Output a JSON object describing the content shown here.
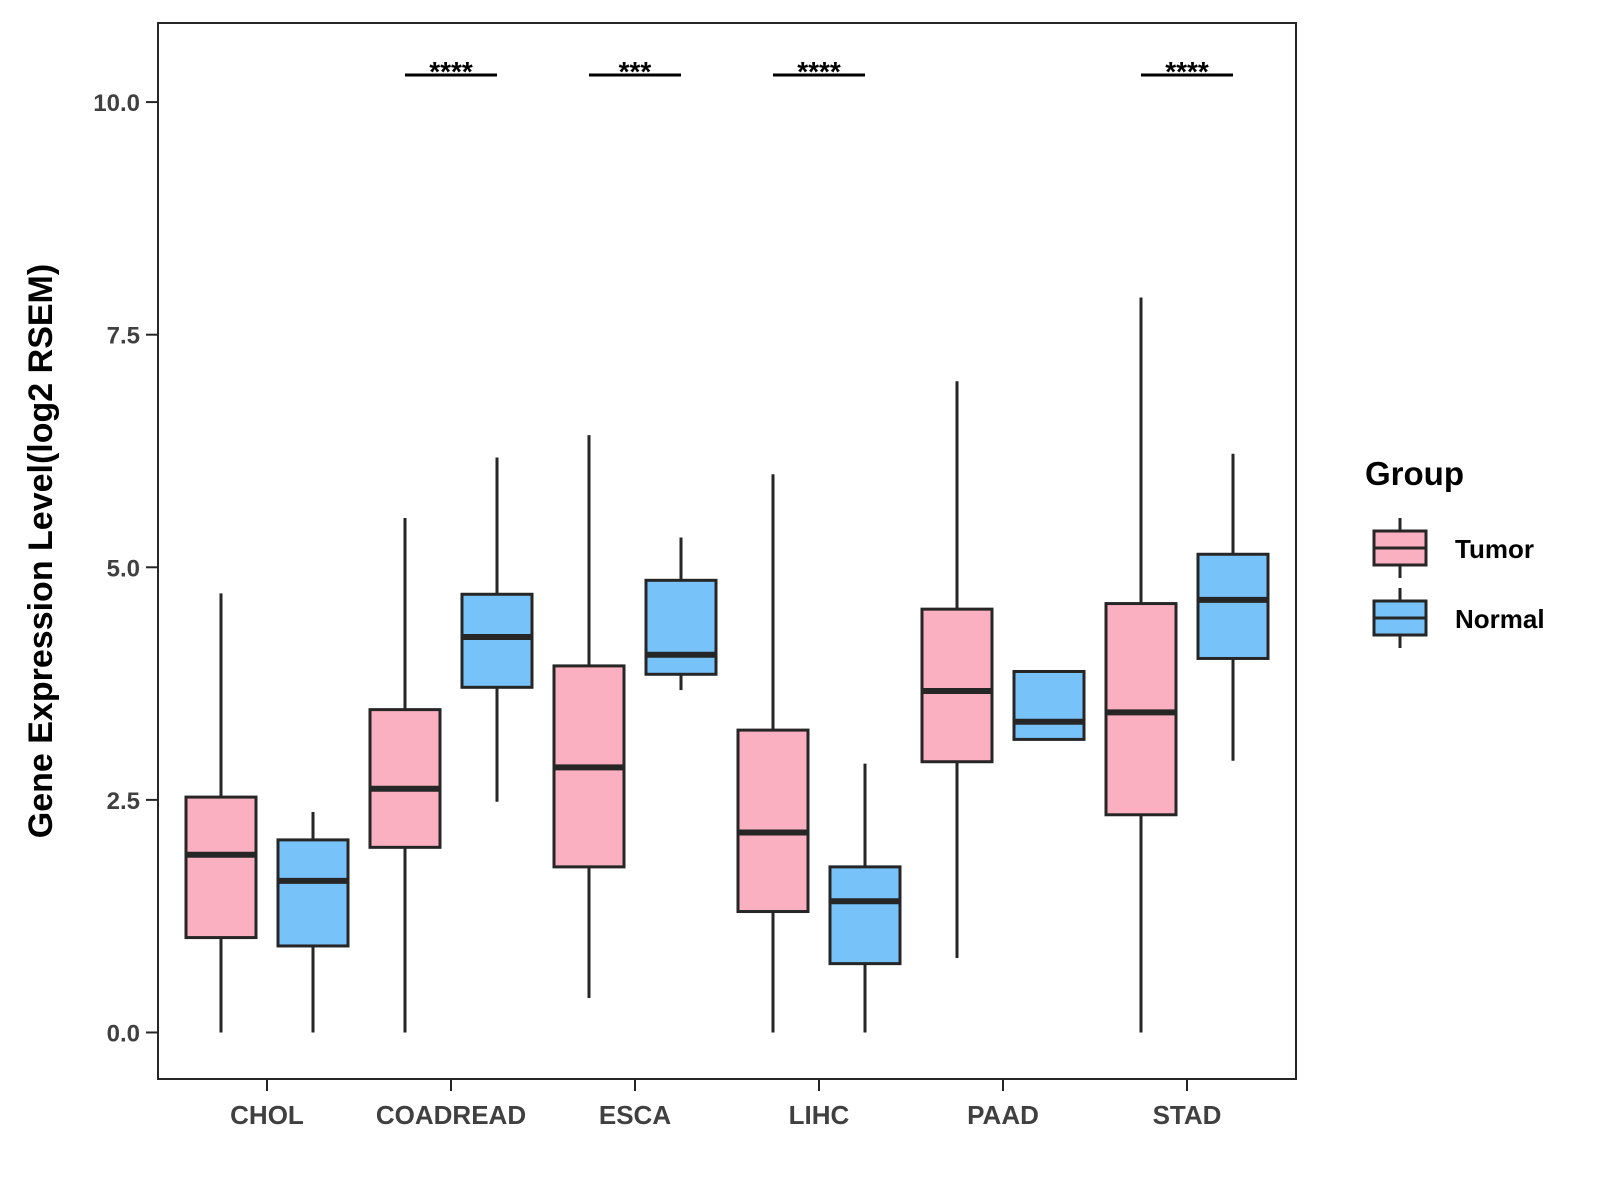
{
  "chart_data": {
    "type": "boxplot",
    "title": "",
    "xlabel": "",
    "ylabel": "Gene Expression Level(log2 RSEM)",
    "ylim": [
      -0.5,
      10.85
    ],
    "yticks": [
      0.0,
      2.5,
      5.0,
      7.5,
      10.0
    ],
    "ytick_labels": [
      "0.0",
      "2.5",
      "5.0",
      "7.5",
      "10.0"
    ],
    "categories": [
      "CHOL",
      "COADREAD",
      "ESCA",
      "LIHC",
      "PAAD",
      "STAD"
    ],
    "legend": {
      "title": "Group",
      "position": "right"
    },
    "colors": {
      "Tumor": "#fbb0c1",
      "Normal": "#78c2fa",
      "outline": "#262626"
    },
    "series": [
      {
        "name": "Tumor",
        "boxes": [
          {
            "min": 0.0,
            "q1": 1.02,
            "median": 1.91,
            "q3": 2.53,
            "max": 4.72
          },
          {
            "min": 0.0,
            "q1": 1.99,
            "median": 2.62,
            "q3": 3.47,
            "max": 5.53
          },
          {
            "min": 0.37,
            "q1": 1.78,
            "median": 2.85,
            "q3": 3.94,
            "max": 6.42
          },
          {
            "min": 0.0,
            "q1": 1.3,
            "median": 2.15,
            "q3": 3.25,
            "max": 6.0
          },
          {
            "min": 0.8,
            "q1": 2.91,
            "median": 3.67,
            "q3": 4.55,
            "max": 7.0
          },
          {
            "min": 0.0,
            "q1": 2.34,
            "median": 3.44,
            "q3": 4.61,
            "max": 7.9
          }
        ]
      },
      {
        "name": "Normal",
        "boxes": [
          {
            "min": 0.0,
            "q1": 0.93,
            "median": 1.63,
            "q3": 2.07,
            "max": 2.37
          },
          {
            "min": 2.48,
            "q1": 3.71,
            "median": 4.25,
            "q3": 4.71,
            "max": 6.18
          },
          {
            "min": 3.68,
            "q1": 3.85,
            "median": 4.06,
            "q3": 4.86,
            "max": 5.32
          },
          {
            "min": 0.0,
            "q1": 0.74,
            "median": 1.41,
            "q3": 1.78,
            "max": 2.89
          },
          {
            "min": 3.15,
            "q1": 3.15,
            "median": 3.34,
            "q3": 3.88,
            "max": 3.88
          },
          {
            "min": 2.92,
            "q1": 4.02,
            "median": 4.65,
            "q3": 5.14,
            "max": 6.22
          }
        ]
      }
    ],
    "significance": [
      {
        "category": "COADREAD",
        "label": "****"
      },
      {
        "category": "ESCA",
        "label": "***"
      },
      {
        "category": "LIHC",
        "label": "****"
      },
      {
        "category": "STAD",
        "label": "****"
      }
    ]
  }
}
